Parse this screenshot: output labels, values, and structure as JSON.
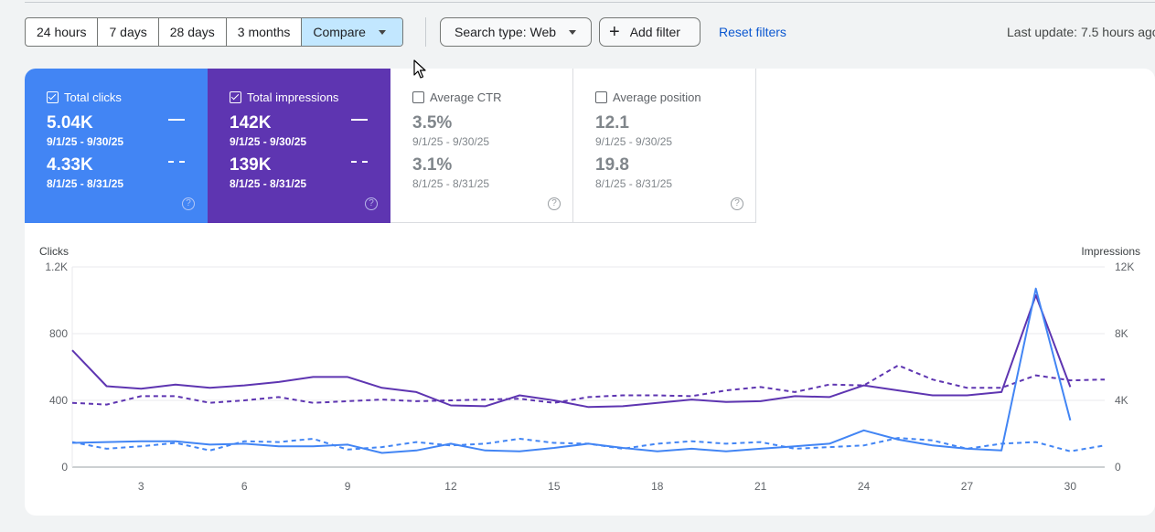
{
  "toolbar": {
    "ranges": [
      "24 hours",
      "7 days",
      "28 days",
      "3 months"
    ],
    "compare_label": "Compare",
    "search_type_label": "Search type: Web",
    "add_filter_label": "Add filter",
    "reset_label": "Reset filters",
    "last_update": "Last update: 7.5 hours ago"
  },
  "metrics": [
    {
      "label": "Total clicks",
      "checked": true,
      "color": "#4285f4",
      "current": "5.04K",
      "current_range": "9/1/25 - 9/30/25",
      "previous": "4.33K",
      "previous_range": "8/1/25 - 8/31/25"
    },
    {
      "label": "Total impressions",
      "checked": true,
      "color": "#5e35b1",
      "current": "142K",
      "current_range": "9/1/25 - 9/30/25",
      "previous": "139K",
      "previous_range": "8/1/25 - 8/31/25"
    },
    {
      "label": "Average CTR",
      "checked": false,
      "current": "3.5%",
      "current_range": "9/1/25 - 9/30/25",
      "previous": "3.1%",
      "previous_range": "8/1/25 - 8/31/25"
    },
    {
      "label": "Average position",
      "checked": false,
      "current": "12.1",
      "current_range": "9/1/25 - 9/30/25",
      "previous": "19.8",
      "previous_range": "8/1/25 - 8/31/25"
    }
  ],
  "help_glyph": "?",
  "chart_data": {
    "type": "line",
    "y_left_label": "Clicks",
    "y_right_label": "Impressions",
    "y_left_ticks": [
      "0",
      "400",
      "800",
      "1.2K"
    ],
    "y_right_ticks": [
      "0",
      "4K",
      "8K",
      "12K"
    ],
    "ylim_left": [
      0,
      1200
    ],
    "ylim_right": [
      0,
      12000
    ],
    "x_ticks": [
      "3",
      "6",
      "9",
      "12",
      "15",
      "18",
      "21",
      "24",
      "27",
      "30"
    ],
    "x_tick_values": [
      3,
      6,
      9,
      12,
      15,
      18,
      21,
      24,
      27,
      30
    ],
    "xlim": [
      1,
      31
    ],
    "grid": true,
    "series": [
      {
        "axis": "right",
        "style": "solid",
        "color": "#5e35b1",
        "x": [
          1,
          2,
          3,
          4,
          5,
          6,
          7,
          8,
          9,
          10,
          11,
          12,
          13,
          14,
          15,
          16,
          17,
          18,
          19,
          20,
          21,
          22,
          23,
          24,
          25,
          26,
          27,
          28,
          29,
          30
        ],
        "values": [
          7000,
          4850,
          4700,
          4950,
          4750,
          4900,
          5100,
          5400,
          5400,
          4750,
          4500,
          3700,
          3650,
          4300,
          4000,
          3600,
          3650,
          3850,
          4050,
          3900,
          3950,
          4250,
          4200,
          4900,
          4600,
          4300,
          4300,
          4500,
          10300,
          4800
        ]
      },
      {
        "axis": "right",
        "style": "dashed",
        "color": "#5e35b1",
        "x": [
          1,
          2,
          3,
          4,
          5,
          6,
          7,
          8,
          9,
          10,
          11,
          12,
          13,
          14,
          15,
          16,
          17,
          18,
          19,
          20,
          21,
          22,
          23,
          24,
          25,
          26,
          27,
          28,
          29,
          30,
          31
        ],
        "values": [
          3850,
          3750,
          4250,
          4250,
          3850,
          4000,
          4200,
          3850,
          3950,
          4050,
          3950,
          4000,
          4050,
          4100,
          3850,
          4200,
          4300,
          4300,
          4250,
          4600,
          4800,
          4500,
          4950,
          4900,
          6100,
          5250,
          4750,
          4750,
          5500,
          5200,
          5250
        ]
      },
      {
        "axis": "left",
        "style": "solid",
        "color": "#4285f4",
        "x": [
          1,
          2,
          3,
          4,
          5,
          6,
          7,
          8,
          9,
          10,
          11,
          12,
          13,
          14,
          15,
          16,
          17,
          18,
          19,
          20,
          21,
          22,
          23,
          24,
          25,
          26,
          27,
          28,
          29,
          30
        ],
        "values": [
          145,
          150,
          155,
          155,
          135,
          140,
          125,
          125,
          135,
          85,
          100,
          140,
          100,
          95,
          115,
          140,
          115,
          95,
          110,
          95,
          110,
          125,
          140,
          220,
          165,
          130,
          110,
          100,
          1070,
          280
        ]
      },
      {
        "axis": "left",
        "style": "dashed",
        "color": "#4285f4",
        "x": [
          1,
          2,
          3,
          4,
          5,
          6,
          7,
          8,
          9,
          10,
          11,
          12,
          13,
          14,
          15,
          16,
          17,
          18,
          19,
          20,
          21,
          22,
          23,
          24,
          25,
          26,
          27,
          28,
          29,
          30,
          31
        ],
        "values": [
          150,
          110,
          125,
          145,
          100,
          155,
          150,
          170,
          105,
          120,
          150,
          130,
          140,
          170,
          145,
          140,
          110,
          140,
          155,
          140,
          150,
          110,
          120,
          130,
          175,
          160,
          110,
          140,
          150,
          95,
          130
        ]
      }
    ]
  }
}
